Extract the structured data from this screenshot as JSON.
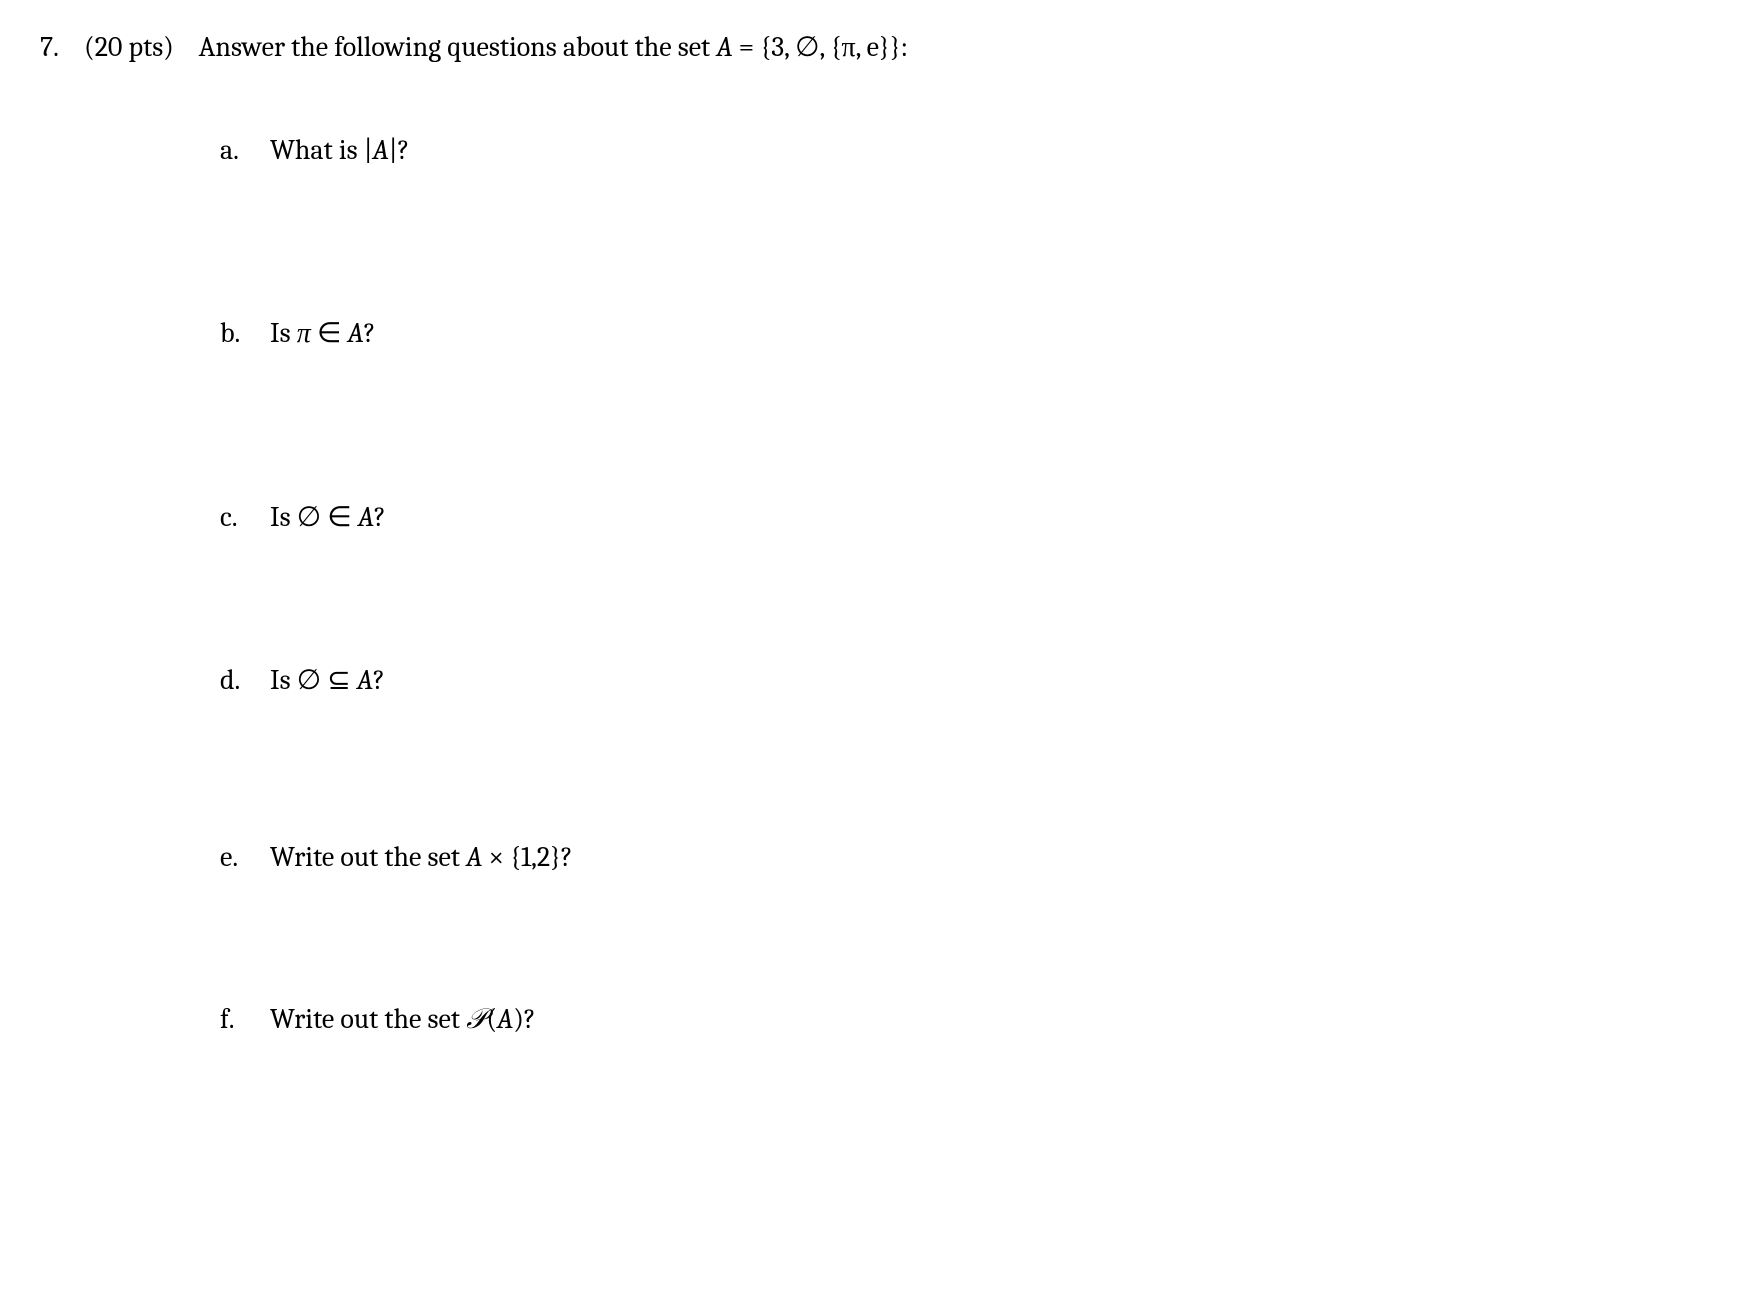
{
  "question": {
    "number": "7.",
    "points": "(20 pts)",
    "prompt_before": "Answer the following questions about the set ",
    "set_label": "A",
    "equals": " = ",
    "set_def": "{3, ∅, {π, e}}:",
    "subparts": {
      "a": {
        "letter": "a.",
        "before": "What is |",
        "var": "A",
        "after": "|?"
      },
      "b": {
        "letter": "b.",
        "before": "Is ",
        "sym": "π",
        "rel": " ∈ ",
        "var": "A",
        "after": "?"
      },
      "c": {
        "letter": "c.",
        "before": "Is ",
        "sym": "∅",
        "rel": " ∈ ",
        "var": "A",
        "after": "?"
      },
      "d": {
        "letter": "d.",
        "before": "Is ",
        "sym": "∅",
        "rel": " ⊆ ",
        "var": "A",
        "after": "?"
      },
      "e": {
        "letter": "e.",
        "before": "Write out the set ",
        "var": "A",
        "rel": " × ",
        "set": "{1,2}",
        "after": "?"
      },
      "f": {
        "letter": "f.",
        "before": "Write out the set ",
        "pow": "𝒫",
        "open": "(",
        "var": "A",
        "after": ")?"
      }
    }
  }
}
